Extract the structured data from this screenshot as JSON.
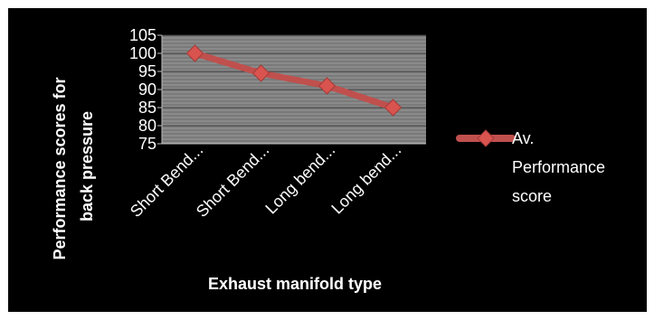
{
  "chart_data": {
    "type": "line",
    "categories": [
      "Short Bend...",
      "Short Bend...",
      "Long bend...",
      "Long bend..."
    ],
    "series": [
      {
        "name": "Av. Performance score",
        "values": [
          100,
          94.5,
          91,
          85
        ]
      }
    ],
    "ylabel": "Performance scores for back pressure",
    "xlabel": "Exhaust manifold type",
    "ylim": [
      75,
      105
    ],
    "yticks": [
      75,
      80,
      85,
      90,
      95,
      100,
      105
    ],
    "grid": true,
    "legend": "right",
    "colors": {
      "line": "#c0504d",
      "marker": "#d9534f",
      "plot_bg": "#808080",
      "background": "#000000",
      "text": "#ffffff"
    }
  },
  "legend": {
    "lines": [
      "Av.",
      "Performance",
      "score"
    ]
  }
}
